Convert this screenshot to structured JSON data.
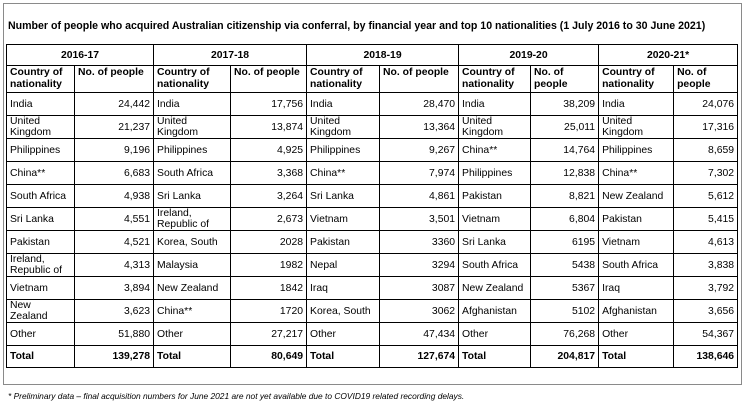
{
  "title": "Number of people who acquired Australian citizenship via conferral, by financial year and top 10 nationalities (1 July 2016 to 30 June 2021)",
  "col_country": "Country of nationality",
  "col_people": "No. of people",
  "years": [
    {
      "label": "2016-17",
      "rows": [
        {
          "country": "India",
          "count": "24,442"
        },
        {
          "country": "United Kingdom",
          "count": "21,237"
        },
        {
          "country": "Philippines",
          "count": "9,196"
        },
        {
          "country": "China**",
          "count": "6,683"
        },
        {
          "country": "South Africa",
          "count": "4,938"
        },
        {
          "country": "Sri Lanka",
          "count": "4,551"
        },
        {
          "country": "Pakistan",
          "count": "4,521"
        },
        {
          "country": "Ireland, Republic of",
          "count": "4,313"
        },
        {
          "country": "Vietnam",
          "count": "3,894"
        },
        {
          "country": "New Zealand",
          "count": "3,623"
        },
        {
          "country": "Other",
          "count": "51,880"
        }
      ],
      "total": "139,278"
    },
    {
      "label": "2017-18",
      "rows": [
        {
          "country": "India",
          "count": "17,756"
        },
        {
          "country": "United Kingdom",
          "count": "13,874"
        },
        {
          "country": "Philippines",
          "count": "4,925"
        },
        {
          "country": "South Africa",
          "count": "3,368"
        },
        {
          "country": "Sri Lanka",
          "count": "3,264"
        },
        {
          "country": "Ireland, Republic of",
          "count": "2,673"
        },
        {
          "country": "Korea, South",
          "count": "2028"
        },
        {
          "country": "Malaysia",
          "count": "1982"
        },
        {
          "country": "New Zealand",
          "count": "1842"
        },
        {
          "country": "China**",
          "count": "1720"
        },
        {
          "country": "Other",
          "count": "27,217"
        }
      ],
      "total": "80,649"
    },
    {
      "label": "2018-19",
      "rows": [
        {
          "country": "India",
          "count": "28,470"
        },
        {
          "country": "United Kingdom",
          "count": "13,364"
        },
        {
          "country": "Philippines",
          "count": "9,267"
        },
        {
          "country": "China**",
          "count": "7,974"
        },
        {
          "country": "Sri Lanka",
          "count": "4,861"
        },
        {
          "country": "Vietnam",
          "count": "3,501"
        },
        {
          "country": "Pakistan",
          "count": "3360"
        },
        {
          "country": "Nepal",
          "count": "3294"
        },
        {
          "country": "Iraq",
          "count": "3087"
        },
        {
          "country": "Korea, South",
          "count": "3062"
        },
        {
          "country": "Other",
          "count": "47,434"
        }
      ],
      "total": "127,674"
    },
    {
      "label": "2019-20",
      "rows": [
        {
          "country": "India",
          "count": "38,209"
        },
        {
          "country": "United Kingdom",
          "count": "25,011"
        },
        {
          "country": "China**",
          "count": "14,764"
        },
        {
          "country": "Philippines",
          "count": "12,838"
        },
        {
          "country": "Pakistan",
          "count": "8,821"
        },
        {
          "country": "Vietnam",
          "count": "6,804"
        },
        {
          "country": "Sri Lanka",
          "count": "6195"
        },
        {
          "country": "South Africa",
          "count": "5438"
        },
        {
          "country": "New Zealand",
          "count": "5367"
        },
        {
          "country": "Afghanistan",
          "count": "5102"
        },
        {
          "country": "Other",
          "count": "76,268"
        }
      ],
      "total": "204,817"
    },
    {
      "label": "2020-21*",
      "rows": [
        {
          "country": "India",
          "count": "24,076"
        },
        {
          "country": "United Kingdom",
          "count": "17,316"
        },
        {
          "country": "Philippines",
          "count": "8,659"
        },
        {
          "country": "China**",
          "count": "7,302"
        },
        {
          "country": "New Zealand",
          "count": "5,612"
        },
        {
          "country": "Pakistan",
          "count": "5,415"
        },
        {
          "country": "Vietnam",
          "count": "4,613"
        },
        {
          "country": "South Africa",
          "count": "3,838"
        },
        {
          "country": "Iraq",
          "count": "3,792"
        },
        {
          "country": "Afghanistan",
          "count": "3,656"
        },
        {
          "country": "Other",
          "count": "54,367"
        }
      ],
      "total": "138,646"
    }
  ],
  "total_label": "Total",
  "footnote": "* Preliminary data – final acquisition numbers for June 2021 are not yet available due to COVID19 related recording delays."
}
